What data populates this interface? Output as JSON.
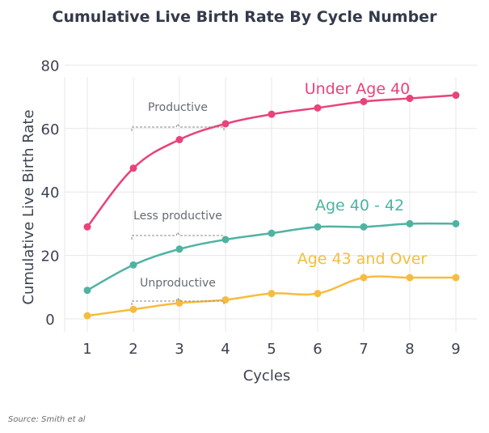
{
  "chart_data": {
    "type": "line",
    "title": "Cumulative Live Birth Rate By Cycle Number",
    "xlabel": "Cycles",
    "ylabel": "Cumulative Live Birth Rate",
    "x": [
      1,
      2,
      3,
      4,
      5,
      6,
      7,
      8,
      9
    ],
    "xlim": [
      1,
      9
    ],
    "ylim": [
      0,
      80
    ],
    "yticks": [
      0,
      20,
      40,
      60,
      80
    ],
    "grid": true,
    "series": [
      {
        "name": "Under Age 40",
        "color": "#e8437c",
        "values": [
          29,
          47.5,
          56.5,
          61.5,
          64.5,
          66.5,
          68.5,
          69.5,
          70.5
        ]
      },
      {
        "name": "Age 40 - 42",
        "color": "#4fb3a2",
        "values": [
          9,
          17,
          22,
          25,
          27,
          29,
          29,
          30,
          30
        ]
      },
      {
        "name": "Age 43 and Over",
        "color": "#f7bc3f",
        "values": [
          1,
          3,
          5,
          6,
          8,
          8,
          13,
          13,
          13
        ]
      }
    ],
    "annotations": [
      {
        "text": "Productive",
        "x_from": 2,
        "x_to": 4,
        "y": 61
      },
      {
        "text": "Less productive",
        "x_from": 2,
        "x_to": 4,
        "y": 27
      },
      {
        "text": "Unproductive",
        "x_from": 2,
        "x_to": 4,
        "y": 6
      }
    ],
    "source": "Source: Smith et al"
  }
}
